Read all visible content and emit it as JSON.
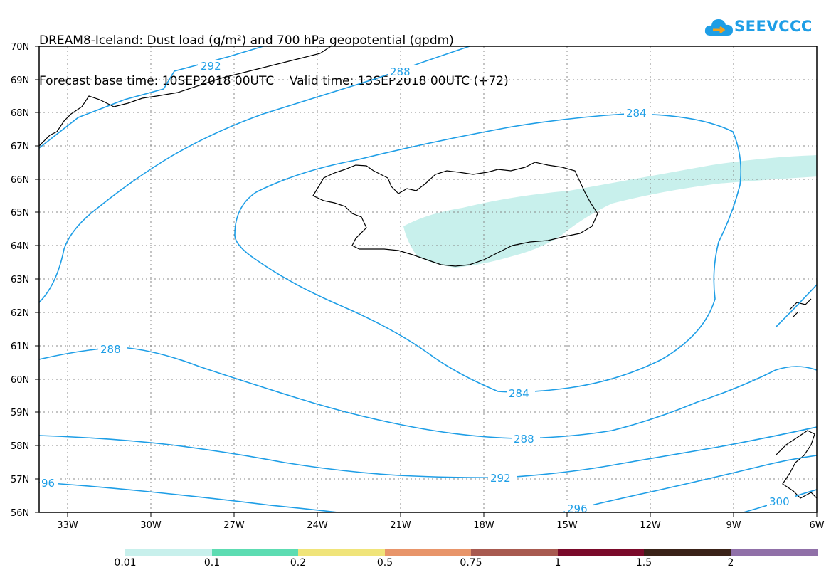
{
  "title": {
    "line1": "DREAM8-Iceland: Dust load (g/m²) and 700 hPa geopotential (gpdm)",
    "line2": "Forecast base time: 10SEP2018 00UTC    Valid time: 13SEP2018 00UTC (+72)"
  },
  "logo": {
    "text": "SEEVCCC",
    "icon": "cloud-icon"
  },
  "map": {
    "lat_labels": [
      "70N",
      "69N",
      "68N",
      "67N",
      "66N",
      "65N",
      "64N",
      "63N",
      "62N",
      "61N",
      "60N",
      "59N",
      "58N",
      "57N",
      "56N"
    ],
    "lon_labels": [
      "33W",
      "30W",
      "27W",
      "24W",
      "21W",
      "18W",
      "15W",
      "12W",
      "9W",
      "6W"
    ],
    "contour_color": "#1e9ee6",
    "dust_color": "#c8f0ec",
    "contour_labels": [
      "292",
      "288",
      "284",
      "288",
      "284",
      "288",
      "292",
      "96",
      "296",
      "300"
    ]
  },
  "colorbar": {
    "colors": [
      "#c8f0ec",
      "#5ddcb2",
      "#f0e47a",
      "#e8956a",
      "#a85a50",
      "#7a0a2a",
      "#3a2218",
      "#9070a8"
    ],
    "labels": [
      "0.01",
      "0.1",
      "0.2",
      "0.5",
      "0.75",
      "1",
      "1.5",
      "2"
    ]
  }
}
